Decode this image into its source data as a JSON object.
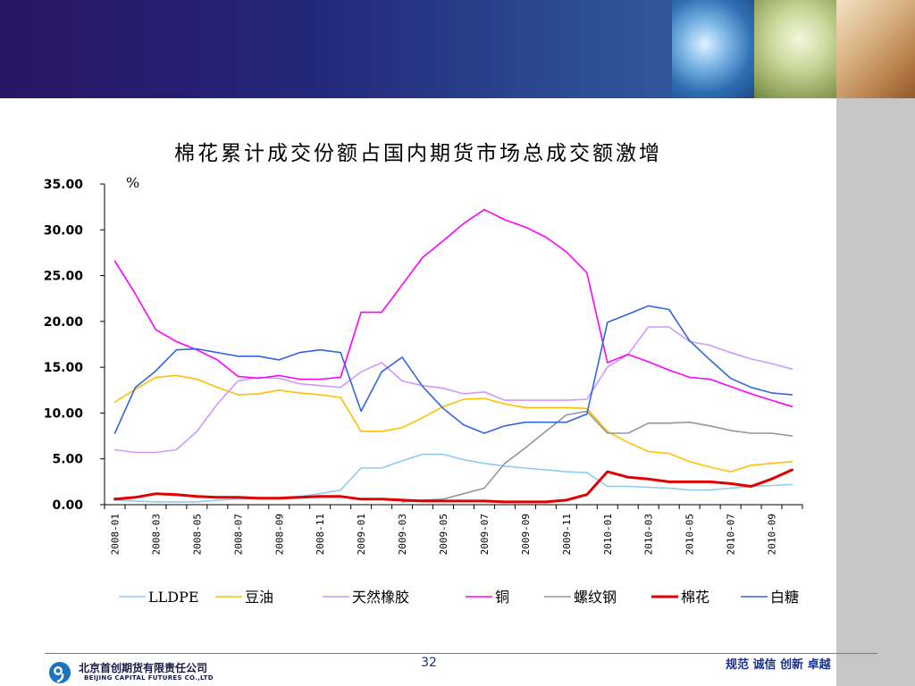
{
  "slide": {
    "title": "棉花累计成交份额占国内期货市场总成交额激增",
    "page_number": "32",
    "slogan": "规范 诚信 创新 卓越",
    "company_cn": "北京首创期货有限责任公司",
    "company_en": "BEIJING CAPITAL FUTURES CO.,LTD"
  },
  "colors": {
    "header_start": "#2a1466",
    "header_end": "#3a6eb0",
    "right_bar": "#c6c6c6",
    "accent_blue": "#1a2f8a"
  },
  "chart_data": {
    "type": "line",
    "title": "棉花累计成交份额占国内期货市场总成交额激增",
    "ylabel": "%",
    "ylim": [
      0,
      35
    ],
    "y_ticks": [
      "0.00",
      "5.00",
      "10.00",
      "15.00",
      "20.00",
      "25.00",
      "30.00",
      "35.00"
    ],
    "grid": false,
    "legend": "bottom",
    "x": [
      "2008-01",
      "2008-02",
      "2008-03",
      "2008-04",
      "2008-05",
      "2008-06",
      "2008-07",
      "2008-08",
      "2008-09",
      "2008-10",
      "2008-11",
      "2008-12",
      "2009-01",
      "2009-02",
      "2009-03",
      "2009-04",
      "2009-05",
      "2009-06",
      "2009-07",
      "2009-08",
      "2009-09",
      "2009-10",
      "2009-11",
      "2009-12",
      "2010-01",
      "2010-02",
      "2010-03",
      "2010-04",
      "2010-05",
      "2010-06",
      "2010-07",
      "2010-08",
      "2010-09",
      "2010-10"
    ],
    "x_tick_labels": [
      "2008-01",
      "2008-03",
      "2008-05",
      "2008-07",
      "2008-09",
      "2008-11",
      "2009-01",
      "2009-03",
      "2009-05",
      "2009-07",
      "2009-09",
      "2009-11",
      "2010-01",
      "2010-03",
      "2010-05",
      "2010-07",
      "2010-09"
    ],
    "series": [
      {
        "name": "LLDPE",
        "color": "#8ecbf0",
        "values": [
          0.5,
          0.4,
          0.3,
          0.3,
          0.3,
          0.5,
          0.6,
          0.7,
          0.8,
          0.9,
          1.2,
          1.6,
          4.0,
          4.0,
          4.8,
          5.5,
          5.5,
          4.9,
          4.5,
          4.2,
          4.0,
          3.8,
          3.6,
          3.5,
          2.0,
          2.0,
          1.9,
          1.8,
          1.6,
          1.6,
          1.8,
          2.0,
          2.1,
          2.2
        ]
      },
      {
        "name": "豆油",
        "color": "#ffc000",
        "values": [
          11.2,
          12.6,
          13.9,
          14.1,
          13.7,
          12.8,
          12.0,
          12.1,
          12.5,
          12.2,
          12.0,
          11.7,
          8.0,
          8.0,
          8.4,
          9.5,
          10.7,
          11.5,
          11.6,
          11.0,
          10.6,
          10.6,
          10.6,
          10.5,
          8.0,
          6.8,
          5.8,
          5.6,
          4.7,
          4.1,
          3.6,
          4.3,
          4.5,
          4.7
        ]
      },
      {
        "name": "天然橡胶",
        "color": "#cc99ff",
        "values": [
          6.0,
          5.7,
          5.7,
          6.0,
          8.0,
          11.0,
          13.5,
          13.9,
          13.8,
          13.2,
          13.0,
          12.8,
          14.5,
          15.5,
          13.5,
          13.0,
          12.7,
          12.1,
          12.3,
          11.4,
          11.4,
          11.4,
          11.4,
          11.5,
          15.0,
          16.4,
          19.4,
          19.4,
          17.8,
          17.4,
          16.6,
          15.9,
          15.4,
          14.8
        ]
      },
      {
        "name": "铜",
        "color": "#ff00ff",
        "values": [
          26.6,
          23.0,
          19.1,
          17.8,
          16.9,
          15.8,
          14.0,
          13.8,
          14.1,
          13.7,
          13.7,
          13.9,
          21.0,
          21.0,
          24.0,
          27.0,
          28.8,
          30.7,
          32.2,
          31.1,
          30.3,
          29.2,
          27.6,
          25.3,
          15.5,
          16.4,
          15.6,
          14.7,
          13.9,
          13.7,
          12.9,
          12.1,
          11.4,
          10.7
        ]
      },
      {
        "name": "螺纹钢",
        "color": "#969696",
        "values": [
          null,
          null,
          null,
          null,
          null,
          null,
          null,
          null,
          null,
          null,
          null,
          null,
          null,
          null,
          0.3,
          0.5,
          0.6,
          1.2,
          1.8,
          4.5,
          6.2,
          8.0,
          9.8,
          10.2,
          7.8,
          7.8,
          8.9,
          8.9,
          9.0,
          8.6,
          8.1,
          7.8,
          7.8,
          7.5
        ]
      },
      {
        "name": "棉花",
        "color": "#e00000",
        "values": [
          0.6,
          0.8,
          1.2,
          1.1,
          0.9,
          0.8,
          0.8,
          0.7,
          0.7,
          0.8,
          0.9,
          0.9,
          0.6,
          0.6,
          0.5,
          0.4,
          0.4,
          0.4,
          0.4,
          0.3,
          0.3,
          0.3,
          0.5,
          1.1,
          3.6,
          3.0,
          2.8,
          2.5,
          2.5,
          2.5,
          2.3,
          2.0,
          2.8,
          3.8
        ]
      },
      {
        "name": "白糖",
        "color": "#3366dd",
        "values": [
          7.8,
          12.8,
          14.6,
          16.9,
          17.0,
          16.6,
          16.2,
          16.2,
          15.8,
          16.6,
          16.9,
          16.6,
          10.2,
          14.5,
          16.1,
          12.9,
          10.5,
          8.7,
          7.8,
          8.6,
          9.0,
          9.0,
          9.0,
          9.9,
          19.9,
          20.8,
          21.7,
          21.3,
          17.9,
          15.8,
          13.8,
          12.8,
          12.2,
          12.0
        ]
      }
    ]
  }
}
